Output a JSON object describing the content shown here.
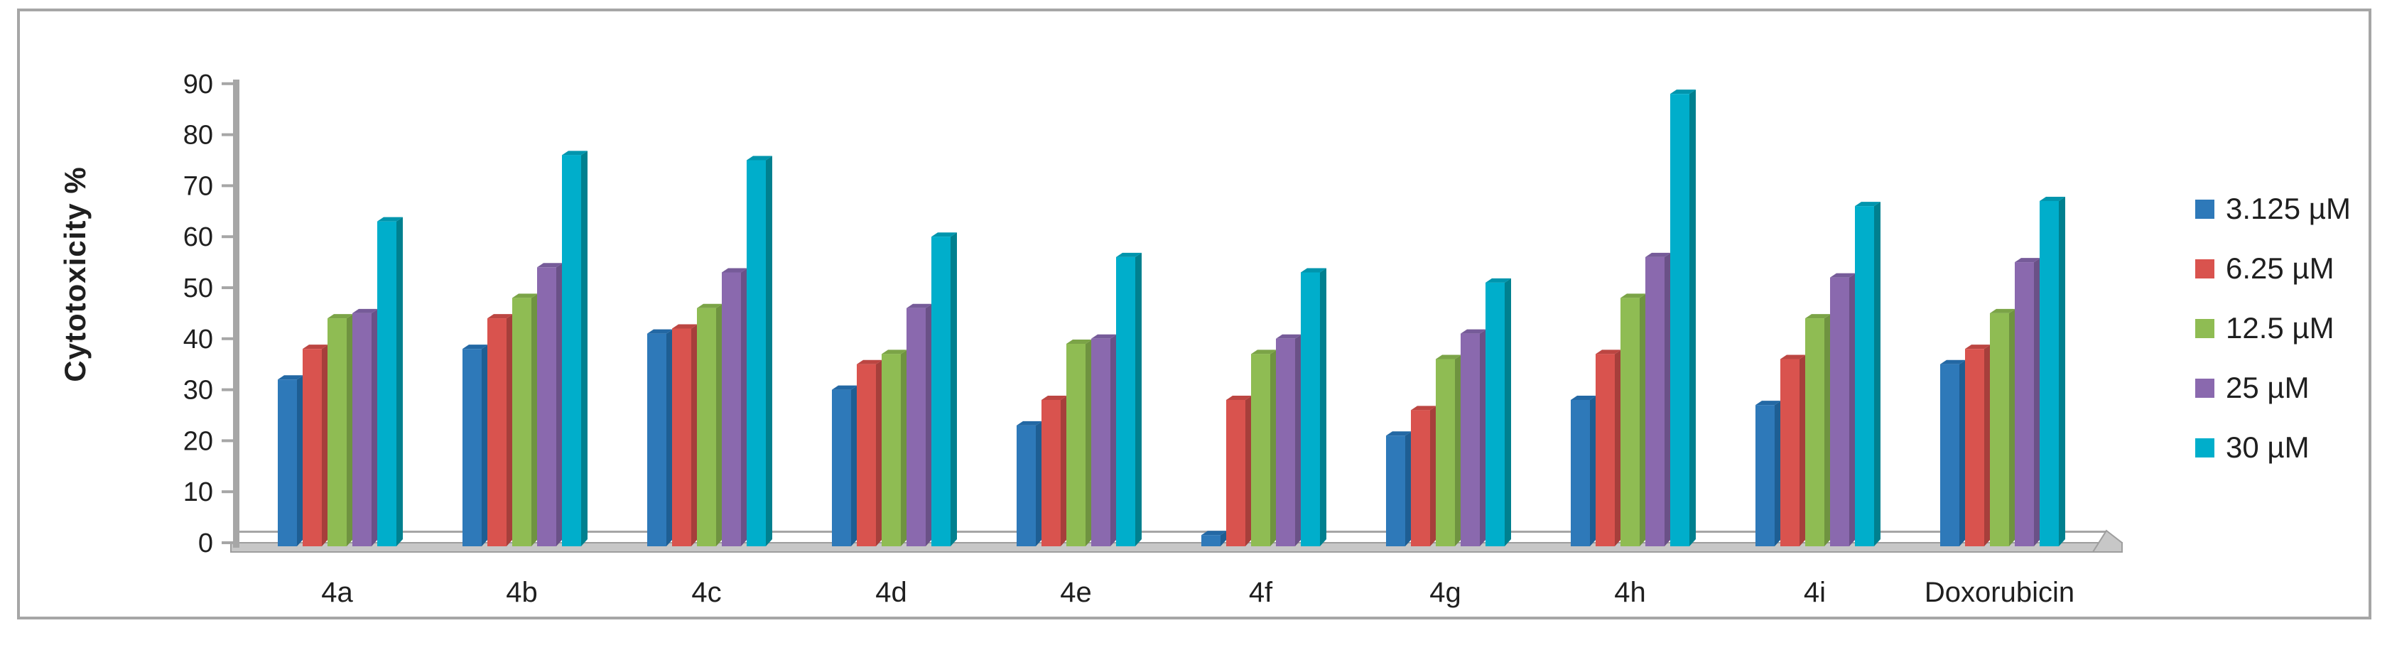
{
  "chart_data": {
    "type": "bar",
    "style": "3d-clustered-column",
    "title": "",
    "xlabel": "",
    "ylabel": "Cytotoxicity %",
    "ylim": [
      0,
      90
    ],
    "yticks": [
      0,
      10,
      20,
      30,
      40,
      50,
      60,
      70,
      80,
      90
    ],
    "grid": false,
    "legend_position": "right",
    "categories": [
      "4a",
      "4b",
      "4c",
      "4d",
      "4e",
      "4f",
      "4g",
      "4h",
      "4i",
      "Doxorubicin"
    ],
    "series": [
      {
        "name": "3.125 µM",
        "color": "#2E79B9",
        "side_color": "#1E5E93",
        "top_color": "#2368A4",
        "values": [
          32,
          38,
          41,
          30,
          23,
          1.5,
          21,
          28,
          27,
          35
        ]
      },
      {
        "name": "6.25 µM",
        "color": "#D9534E",
        "side_color": "#A63F3B",
        "top_color": "#BC4642",
        "values": [
          38,
          44,
          42,
          35,
          28,
          28,
          26,
          37,
          36,
          38
        ]
      },
      {
        "name": "12.5 µM",
        "color": "#8FBC53",
        "side_color": "#6F9340",
        "top_color": "#7BA447",
        "values": [
          44,
          48,
          46,
          37,
          39,
          37,
          36,
          48,
          44,
          45
        ]
      },
      {
        "name": "25 µM",
        "color": "#8A69AE",
        "side_color": "#6A5187",
        "top_color": "#765B99",
        "values": [
          45,
          54,
          53,
          46,
          40,
          40,
          41,
          56,
          52,
          55
        ]
      },
      {
        "name": "30 µM",
        "color": "#00AECB",
        "side_color": "#00808F",
        "top_color": "#0095AD",
        "values": [
          63,
          76,
          75,
          60,
          56,
          53,
          51,
          88,
          66,
          67
        ]
      }
    ]
  },
  "frame": {
    "border_color": "#A6A6A6",
    "axis_color": "#A6A6A6",
    "floor_color": "#C7C7C7",
    "floor_edge_color": "#9E9E9E",
    "text_color": "#1F1F1F",
    "background": "#FFFFFF"
  }
}
